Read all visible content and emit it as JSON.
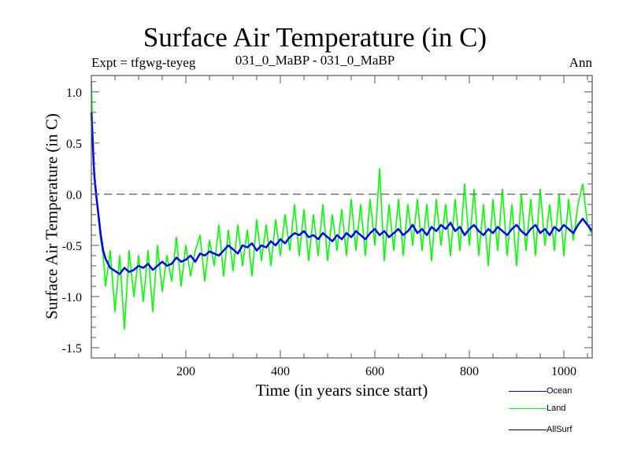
{
  "chart_data": {
    "type": "line",
    "title": "Surface Air Temperature (in C)",
    "subtitle": "031_0_MaBP - 031_0_MaBP",
    "annotation_left": "Expt = tfgwg-teyeg",
    "annotation_right": "Ann",
    "xlabel": "Time (in years since start)",
    "ylabel": "Surface Air Temperature (in C)",
    "xlim": [
      0,
      1060
    ],
    "ylim": [
      -1.6,
      1.16
    ],
    "xticks": [
      200,
      400,
      600,
      800,
      1000
    ],
    "xtick_labels": [
      "200",
      "400",
      "600",
      "800",
      "1000"
    ],
    "yticks": [
      1.0,
      0.5,
      0.0,
      -0.5,
      -1.0,
      -1.5
    ],
    "ytick_labels": [
      "1.0",
      "0.5",
      "0.0",
      "-0.5",
      "-1.0",
      "-1.5"
    ],
    "reference_line": {
      "y": 0.0,
      "style": "dashed",
      "color": "#777777"
    },
    "legend_position": "bottom-right",
    "series": [
      {
        "name": "Ocean",
        "color": "#0000ff",
        "x": [
          0,
          3,
          6,
          10,
          15,
          20,
          25,
          30,
          40,
          50,
          60,
          70,
          80,
          90,
          100,
          110,
          120,
          130,
          140,
          150,
          160,
          170,
          180,
          190,
          200,
          210,
          220,
          230,
          240,
          250,
          260,
          270,
          280,
          290,
          300,
          310,
          320,
          330,
          340,
          350,
          360,
          370,
          380,
          390,
          400,
          410,
          420,
          430,
          440,
          450,
          460,
          470,
          480,
          490,
          500,
          510,
          520,
          530,
          540,
          550,
          560,
          570,
          580,
          590,
          600,
          610,
          620,
          630,
          640,
          650,
          660,
          670,
          680,
          690,
          700,
          710,
          720,
          730,
          740,
          750,
          760,
          770,
          780,
          790,
          800,
          810,
          820,
          830,
          840,
          850,
          860,
          870,
          880,
          890,
          900,
          910,
          920,
          930,
          940,
          950,
          960,
          970,
          980,
          990,
          1000,
          1010,
          1020,
          1030,
          1040,
          1050,
          1060
        ],
        "values": [
          0.8,
          0.5,
          0.2,
          0.0,
          -0.2,
          -0.4,
          -0.55,
          -0.63,
          -0.72,
          -0.75,
          -0.78,
          -0.72,
          -0.76,
          -0.74,
          -0.7,
          -0.72,
          -0.68,
          -0.74,
          -0.7,
          -0.66,
          -0.7,
          -0.68,
          -0.62,
          -0.66,
          -0.64,
          -0.6,
          -0.66,
          -0.58,
          -0.6,
          -0.56,
          -0.58,
          -0.6,
          -0.55,
          -0.5,
          -0.54,
          -0.58,
          -0.5,
          -0.52,
          -0.48,
          -0.55,
          -0.5,
          -0.52,
          -0.46,
          -0.5,
          -0.44,
          -0.48,
          -0.42,
          -0.38,
          -0.4,
          -0.36,
          -0.42,
          -0.4,
          -0.44,
          -0.38,
          -0.42,
          -0.46,
          -0.4,
          -0.44,
          -0.38,
          -0.42,
          -0.36,
          -0.4,
          -0.44,
          -0.38,
          -0.34,
          -0.4,
          -0.36,
          -0.42,
          -0.38,
          -0.34,
          -0.4,
          -0.36,
          -0.3,
          -0.38,
          -0.34,
          -0.4,
          -0.32,
          -0.36,
          -0.3,
          -0.34,
          -0.28,
          -0.36,
          -0.32,
          -0.4,
          -0.34,
          -0.3,
          -0.36,
          -0.4,
          -0.34,
          -0.38,
          -0.32,
          -0.36,
          -0.4,
          -0.34,
          -0.3,
          -0.36,
          -0.4,
          -0.34,
          -0.3,
          -0.38,
          -0.34,
          -0.4,
          -0.32,
          -0.36,
          -0.3,
          -0.34,
          -0.38,
          -0.3,
          -0.24,
          -0.3,
          -0.36
        ]
      },
      {
        "name": "Land",
        "color": "#00ff00",
        "x": [
          0,
          3,
          6,
          10,
          15,
          20,
          25,
          30,
          40,
          50,
          60,
          70,
          80,
          90,
          100,
          110,
          120,
          130,
          140,
          150,
          160,
          170,
          180,
          190,
          200,
          210,
          220,
          230,
          240,
          250,
          260,
          270,
          280,
          290,
          300,
          310,
          320,
          330,
          340,
          350,
          360,
          370,
          380,
          390,
          400,
          410,
          420,
          430,
          440,
          450,
          460,
          470,
          480,
          490,
          500,
          510,
          520,
          530,
          540,
          550,
          560,
          570,
          580,
          590,
          600,
          610,
          620,
          630,
          640,
          650,
          660,
          670,
          680,
          690,
          700,
          710,
          720,
          730,
          740,
          750,
          760,
          770,
          780,
          790,
          800,
          810,
          820,
          830,
          840,
          850,
          860,
          870,
          880,
          890,
          900,
          910,
          920,
          930,
          940,
          950,
          960,
          970,
          980,
          990,
          1000,
          1010,
          1020,
          1030,
          1040,
          1050,
          1060
        ],
        "values": [
          1.1,
          0.6,
          0.2,
          0.05,
          -0.25,
          -0.45,
          -0.6,
          -0.9,
          -0.55,
          -1.15,
          -0.6,
          -1.32,
          -0.55,
          -1.0,
          -0.6,
          -1.05,
          -0.55,
          -1.15,
          -0.5,
          -0.95,
          -0.6,
          -0.85,
          -0.42,
          -0.9,
          -0.5,
          -0.8,
          -0.55,
          -0.4,
          -0.85,
          -0.45,
          -0.7,
          -0.3,
          -0.8,
          -0.35,
          -0.75,
          -0.3,
          -0.7,
          -0.35,
          -0.8,
          -0.25,
          -0.65,
          -0.3,
          -0.7,
          -0.25,
          -0.6,
          -0.2,
          -0.55,
          -0.1,
          -0.6,
          -0.15,
          -0.65,
          -0.2,
          -0.6,
          -0.1,
          -0.65,
          -0.2,
          -0.55,
          -0.15,
          -0.6,
          -0.05,
          -0.55,
          -0.1,
          -0.6,
          -0.05,
          -0.5,
          0.25,
          -0.65,
          -0.1,
          -0.55,
          -0.05,
          -0.6,
          -0.1,
          -0.5,
          -0.05,
          -0.55,
          -0.1,
          -0.65,
          -0.05,
          -0.5,
          -0.1,
          -0.6,
          -0.05,
          -0.55,
          0.1,
          -0.5,
          0.05,
          -0.6,
          -0.1,
          -0.7,
          -0.05,
          -0.55,
          0.05,
          -0.6,
          -0.1,
          -0.7,
          0.0,
          -0.55,
          -0.05,
          -0.6,
          0.05,
          -0.5,
          -0.1,
          -0.55,
          0.0,
          -0.6,
          -0.05,
          -0.45,
          -0.1,
          0.1,
          -0.3,
          -0.4
        ]
      },
      {
        "name": "AllSurf",
        "color": "#000000",
        "x": [],
        "values": []
      }
    ]
  }
}
